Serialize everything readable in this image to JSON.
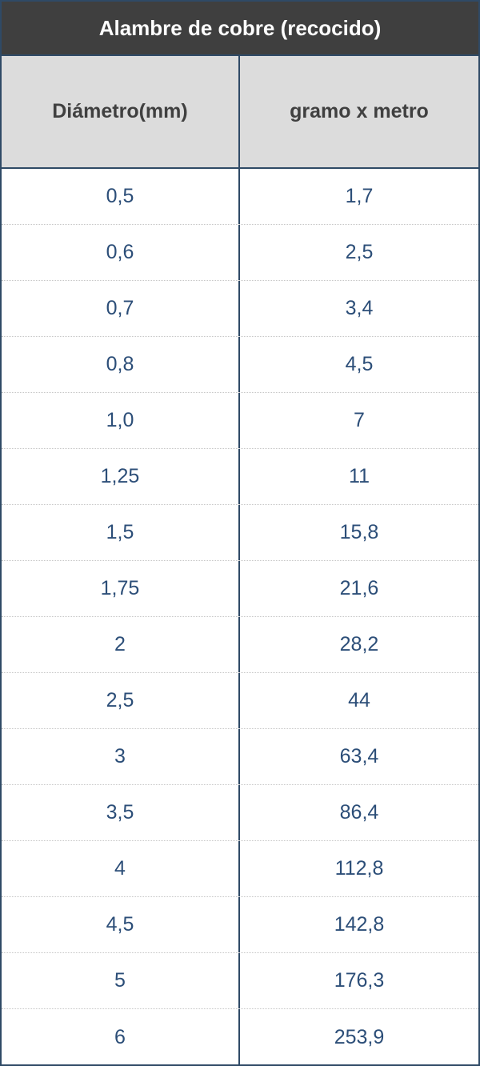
{
  "table": {
    "title": "Alambre de cobre (recocido)",
    "headers": [
      "Diámetro(mm)",
      "gramo x metro"
    ],
    "rows": [
      [
        "0,5",
        "1,7"
      ],
      [
        "0,6",
        "2,5"
      ],
      [
        "0,7",
        "3,4"
      ],
      [
        "0,8",
        "4,5"
      ],
      [
        "1,0",
        "7"
      ],
      [
        "1,25",
        "11"
      ],
      [
        "1,5",
        "15,8"
      ],
      [
        "1,75",
        "21,6"
      ],
      [
        "2",
        "28,2"
      ],
      [
        "2,5",
        "44"
      ],
      [
        "3",
        "63,4"
      ],
      [
        "3,5",
        "86,4"
      ],
      [
        "4",
        "112,8"
      ],
      [
        "4,5",
        "142,8"
      ],
      [
        "5",
        "176,3"
      ],
      [
        "6",
        "253,9"
      ]
    ]
  },
  "colors": {
    "title_bg": "#3f3f3f",
    "header_bg": "#dcdcdc",
    "border": "#2f4a66",
    "value_text": "#2c4e78"
  }
}
